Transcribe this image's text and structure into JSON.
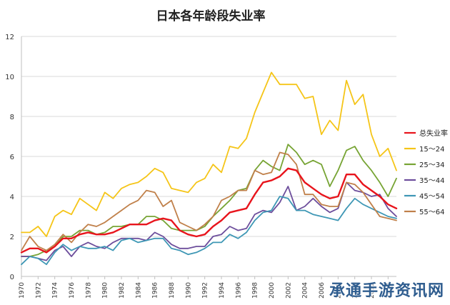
{
  "chart_data": {
    "type": "line",
    "title": "日本各年龄段失业率",
    "xlabel": "",
    "ylabel": "",
    "ylim": [
      0,
      12
    ],
    "yticks": [
      0,
      2,
      4,
      6,
      8,
      10,
      12
    ],
    "x": [
      1970,
      1971,
      1972,
      1973,
      1974,
      1975,
      1976,
      1977,
      1978,
      1979,
      1980,
      1981,
      1982,
      1983,
      1984,
      1985,
      1986,
      1987,
      1988,
      1989,
      1990,
      1991,
      1992,
      1993,
      1994,
      1995,
      1996,
      1997,
      1998,
      1999,
      2000,
      2001,
      2002,
      2003,
      2004,
      2005,
      2006,
      2007,
      2008,
      2009,
      2010,
      2011,
      2012,
      2013,
      2014,
      2015
    ],
    "xtick_labels": [
      "1970",
      "1972",
      "1974",
      "1976",
      "1978",
      "1980",
      "1982",
      "1984",
      "1986",
      "1988",
      "1990",
      "1992",
      "1994",
      "1996",
      "1998",
      "2000",
      "2002",
      "2004",
      "2006",
      "2008",
      "2010",
      "2012",
      "2014"
    ],
    "grid": "horizontal",
    "legend_position": "right",
    "series": [
      {
        "name": "总失业率",
        "color": "#e8141c",
        "values": [
          1.2,
          1.4,
          1.4,
          1.2,
          1.5,
          1.9,
          1.9,
          2.1,
          2.2,
          2.1,
          2.1,
          2.2,
          2.4,
          2.6,
          2.6,
          2.6,
          2.8,
          2.9,
          2.8,
          2.3,
          2.1,
          2.0,
          2.1,
          2.5,
          2.8,
          3.2,
          3.3,
          3.4,
          4.1,
          4.7,
          4.8,
          5.0,
          5.4,
          5.3,
          4.7,
          4.4,
          4.1,
          3.9,
          4.0,
          5.1,
          5.1,
          4.6,
          4.3,
          4.0,
          3.6,
          3.4
        ]
      },
      {
        "name": "15～24",
        "color": "#f5c518",
        "values": [
          2.2,
          2.2,
          2.5,
          2.0,
          3.0,
          3.3,
          3.1,
          3.9,
          3.6,
          3.3,
          4.2,
          3.9,
          4.4,
          4.6,
          4.7,
          5.0,
          5.4,
          5.2,
          4.4,
          4.3,
          4.2,
          4.7,
          4.9,
          5.6,
          5.2,
          6.5,
          6.4,
          6.9,
          8.2,
          9.2,
          10.2,
          9.6,
          9.6,
          9.6,
          8.9,
          9.0,
          7.1,
          7.8,
          7.3,
          9.8,
          8.6,
          9.1,
          7.1,
          6.0,
          6.4,
          5.3
        ]
      },
      {
        "name": "25～34",
        "color": "#77a434",
        "values": [
          1.0,
          1.0,
          1.1,
          1.3,
          1.5,
          2.0,
          2.0,
          2.3,
          2.3,
          2.1,
          2.2,
          2.5,
          2.5,
          2.6,
          2.6,
          3.0,
          3.0,
          2.8,
          2.4,
          2.3,
          2.3,
          2.3,
          2.5,
          3.0,
          3.4,
          3.8,
          4.3,
          4.4,
          5.3,
          5.8,
          5.5,
          5.3,
          6.6,
          6.2,
          5.6,
          5.8,
          5.6,
          4.5,
          5.3,
          6.3,
          6.5,
          5.8,
          5.3,
          4.7,
          4.0,
          4.9
        ]
      },
      {
        "name": "35～44",
        "color": "#6d4e9c",
        "values": [
          1.0,
          1.0,
          0.9,
          0.8,
          1.3,
          1.5,
          1.0,
          1.5,
          1.7,
          1.5,
          1.4,
          1.7,
          1.9,
          1.9,
          1.9,
          1.8,
          2.2,
          2.0,
          1.6,
          1.4,
          1.4,
          1.5,
          1.5,
          2.0,
          2.1,
          2.5,
          2.3,
          2.4,
          3.1,
          3.3,
          3.2,
          3.7,
          4.5,
          3.3,
          3.5,
          3.9,
          3.5,
          3.2,
          3.4,
          4.7,
          4.3,
          4.2,
          4.0,
          4.1,
          3.4,
          3.0
        ]
      },
      {
        "name": "45～54",
        "color": "#3e97b5",
        "values": [
          0.6,
          1.0,
          0.9,
          0.6,
          1.2,
          1.6,
          1.3,
          1.5,
          1.4,
          1.4,
          1.5,
          1.3,
          1.8,
          1.9,
          1.7,
          1.8,
          1.9,
          1.9,
          1.4,
          1.3,
          1.1,
          1.2,
          1.4,
          1.7,
          1.7,
          2.1,
          1.9,
          2.2,
          2.8,
          3.2,
          3.3,
          4.0,
          3.9,
          3.3,
          3.3,
          3.1,
          3.0,
          2.9,
          2.8,
          3.4,
          3.9,
          3.6,
          3.4,
          3.2,
          3.0,
          2.9
        ]
      },
      {
        "name": "55～64",
        "color": "#c0804a",
        "values": [
          1.3,
          2.0,
          1.5,
          1.3,
          1.6,
          2.1,
          1.7,
          2.2,
          2.6,
          2.5,
          2.7,
          3.0,
          3.3,
          3.6,
          3.8,
          4.3,
          4.2,
          3.5,
          3.8,
          2.7,
          2.5,
          2.3,
          2.6,
          3.0,
          3.8,
          4.0,
          4.3,
          4.3,
          5.3,
          5.1,
          5.2,
          6.2,
          6.1,
          5.6,
          4.1,
          4.1,
          3.6,
          3.5,
          3.5,
          4.7,
          4.6,
          4.2,
          3.6,
          3.0,
          2.9,
          2.8
        ]
      }
    ]
  },
  "watermark": "承通手游资讯网"
}
